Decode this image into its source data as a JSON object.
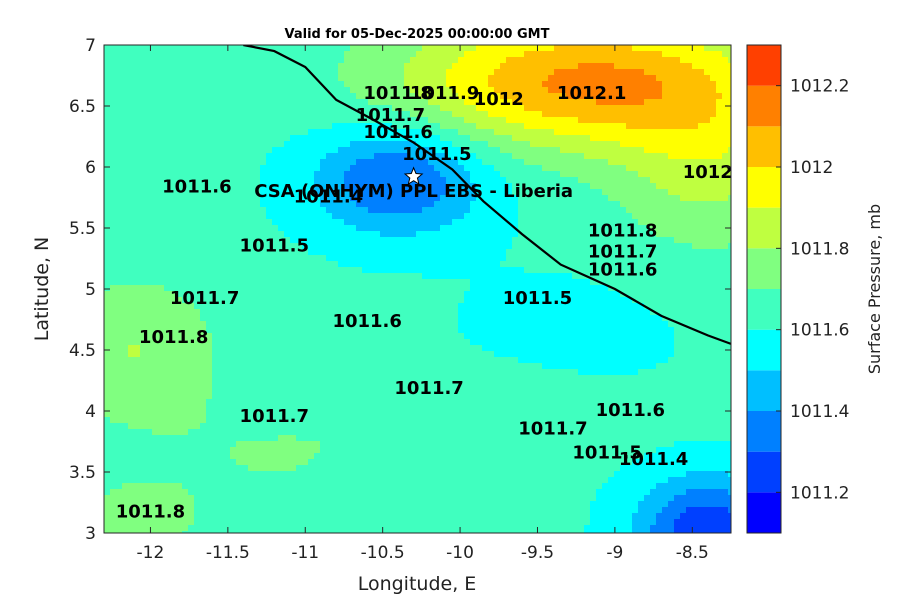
{
  "chart_data": {
    "type": "heatmap",
    "title": "Valid for 05-Dec-2025 00:00:00 GMT",
    "xlabel": "Longitude, E",
    "ylabel": "Latitude, N",
    "colorbar_label": "Surface Pressure, mb",
    "xlim": [
      -12.3,
      -8.25
    ],
    "ylim": [
      3,
      7
    ],
    "x_ticks": [
      "-12",
      "-11.5",
      "-11",
      "-10.5",
      "-10",
      "-9.5",
      "-9",
      "-8.5"
    ],
    "x_tick_values": [
      -12,
      -11.5,
      -11,
      -10.5,
      -10,
      -9.5,
      -9,
      -8.5
    ],
    "y_ticks": [
      "3",
      "3.5",
      "4",
      "4.5",
      "5",
      "5.5",
      "6",
      "6.5",
      "7"
    ],
    "y_tick_values": [
      3,
      3.5,
      4,
      4.5,
      5,
      5.5,
      6,
      6.5,
      7
    ],
    "colorbar_ticks": [
      "1011.2",
      "1011.4",
      "1011.6",
      "1011.8",
      "1012",
      "1012.2"
    ],
    "colorbar_tick_values": [
      1011.2,
      1011.4,
      1011.6,
      1011.8,
      1012,
      1012.2
    ],
    "levels": [
      1011.1,
      1011.2,
      1011.3,
      1011.4,
      1011.5,
      1011.6,
      1011.7,
      1011.8,
      1011.9,
      1012,
      1012.1,
      1012.2,
      1012.3
    ],
    "colors": [
      "#0000ff",
      "#0040ff",
      "#0080ff",
      "#00bfff",
      "#00ffff",
      "#40ffbf",
      "#80ff80",
      "#bfff40",
      "#ffff00",
      "#ffbf00",
      "#ff8000",
      "#ff4000",
      "#ff0000"
    ],
    "station": {
      "label": "CSA (ONHYM) PPL EBS  - Liberia",
      "lon": -10.3,
      "lat": 5.92
    },
    "contour_labels": [
      {
        "text": "1011.8",
        "lon": -10.4,
        "lat": 6.6
      },
      {
        "text": "1011.9",
        "lon": -10.1,
        "lat": 6.6
      },
      {
        "text": "1012",
        "lon": -9.75,
        "lat": 6.55
      },
      {
        "text": "1012.1",
        "lon": -9.15,
        "lat": 6.6
      },
      {
        "text": "1011.7",
        "lon": -10.45,
        "lat": 6.42
      },
      {
        "text": "1011.6",
        "lon": -10.4,
        "lat": 6.28
      },
      {
        "text": "1011.5",
        "lon": -10.15,
        "lat": 6.1
      },
      {
        "text": "1011.4",
        "lon": -10.85,
        "lat": 5.75
      },
      {
        "text": "1011.6",
        "lon": -11.7,
        "lat": 5.83
      },
      {
        "text": "1011.5",
        "lon": -11.2,
        "lat": 5.35
      },
      {
        "text": "1011.7",
        "lon": -11.65,
        "lat": 4.92
      },
      {
        "text": "1011.8",
        "lon": -11.85,
        "lat": 4.6
      },
      {
        "text": "1011.6",
        "lon": -10.6,
        "lat": 4.73
      },
      {
        "text": "1011.5",
        "lon": -9.5,
        "lat": 4.92
      },
      {
        "text": "1012",
        "lon": -8.4,
        "lat": 5.95
      },
      {
        "text": "1011.8",
        "lon": -8.95,
        "lat": 5.47
      },
      {
        "text": "1011.7",
        "lon": -8.95,
        "lat": 5.3
      },
      {
        "text": "1011.6",
        "lon": -8.95,
        "lat": 5.15
      },
      {
        "text": "1011.7",
        "lon": -10.2,
        "lat": 4.18
      },
      {
        "text": "1011.7",
        "lon": -11.2,
        "lat": 3.95
      },
      {
        "text": "1011.7",
        "lon": -9.4,
        "lat": 3.85
      },
      {
        "text": "1011.6",
        "lon": -8.9,
        "lat": 4.0
      },
      {
        "text": "1011.5",
        "lon": -9.05,
        "lat": 3.65
      },
      {
        "text": "1011.4",
        "lon": -8.75,
        "lat": 3.6
      },
      {
        "text": "1011.8",
        "lon": -12.0,
        "lat": 3.17
      }
    ]
  }
}
